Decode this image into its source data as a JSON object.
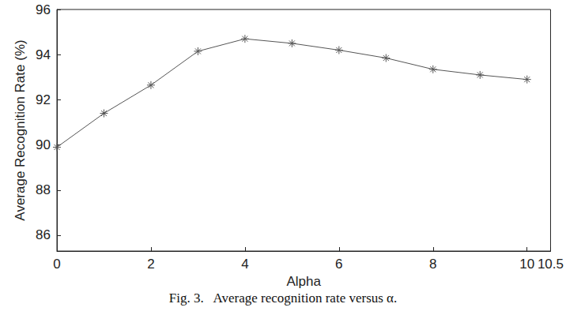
{
  "chart_data": {
    "type": "line",
    "caption": "Fig. 3.   Average recognition rate versus α.",
    "x_label": "Alpha",
    "y_label": "Average Recognition Rate (%)",
    "x": [
      0,
      1,
      2,
      3,
      4,
      5,
      6,
      7,
      8,
      9,
      10
    ],
    "values": [
      89.9,
      91.4,
      92.65,
      94.15,
      94.7,
      94.5,
      94.2,
      93.85,
      93.35,
      93.1,
      92.9
    ],
    "color": "#555555",
    "marker": "asterisk",
    "line_style": "solid",
    "xlim": [
      0,
      10.5
    ],
    "xticks": [
      0,
      2,
      4,
      6,
      8,
      10
    ],
    "ylim": [
      85.3,
      96
    ],
    "yticks": [
      86,
      88,
      90,
      92,
      94,
      96
    ],
    "grid": false
  }
}
